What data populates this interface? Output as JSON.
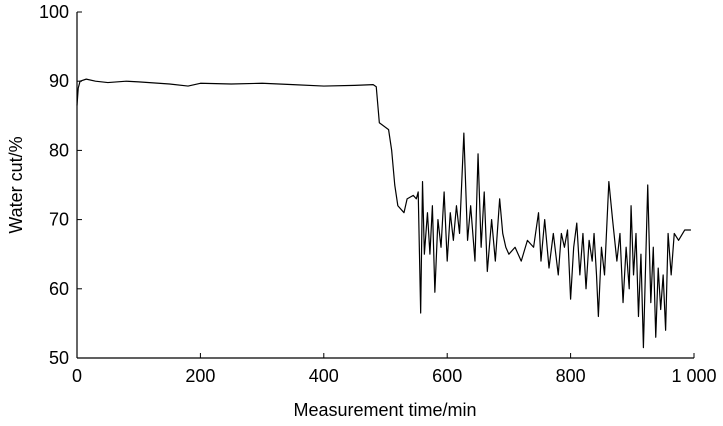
{
  "chart_data": {
    "type": "line",
    "xlabel": "Measurement time/min",
    "ylabel": "Water cut/%",
    "xlim": [
      0,
      1000
    ],
    "ylim": [
      50,
      100
    ],
    "xticks": [
      0,
      200,
      400,
      600,
      800,
      {
        "value": 1000,
        "label": "1 000"
      }
    ],
    "yticks": [
      50,
      60,
      70,
      80,
      90,
      100
    ],
    "series": [
      {
        "color": "#000000",
        "x": [
          0,
          2,
          5,
          15,
          30,
          50,
          80,
          100,
          150,
          180,
          200,
          250,
          300,
          350,
          400,
          450,
          480,
          485,
          490,
          505,
          510,
          515,
          520,
          530,
          535,
          545,
          550,
          553,
          557,
          560,
          563,
          568,
          572,
          576,
          580,
          585,
          590,
          595,
          600,
          605,
          610,
          615,
          620,
          627,
          633,
          638,
          645,
          650,
          655,
          660,
          665,
          672,
          678,
          685,
          690,
          695,
          700,
          710,
          720,
          730,
          740,
          748,
          752,
          758,
          765,
          772,
          780,
          785,
          790,
          795,
          800,
          805,
          810,
          815,
          820,
          825,
          830,
          835,
          838,
          842,
          845,
          850,
          855,
          862,
          868,
          875,
          880,
          885,
          890,
          895,
          898,
          902,
          906,
          910,
          914,
          918,
          925,
          930,
          934,
          938,
          942,
          946,
          950,
          954,
          958,
          963,
          968,
          975,
          985,
          995
        ],
        "values": [
          86.5,
          89,
          90,
          90.3,
          90,
          89.8,
          90,
          89.9,
          89.6,
          89.3,
          89.7,
          89.6,
          89.7,
          89.5,
          89.3,
          89.4,
          89.5,
          89.2,
          84,
          83,
          80,
          75,
          72,
          71,
          73,
          73.5,
          73,
          74,
          56.5,
          75.5,
          65,
          71,
          65,
          72,
          59.5,
          70,
          66,
          74,
          64,
          71,
          67,
          72,
          68,
          82.5,
          67,
          72,
          64,
          79.5,
          66,
          74,
          62.5,
          70,
          64,
          73,
          68,
          66,
          65,
          66,
          64,
          67,
          66,
          71,
          64,
          70,
          63,
          68,
          62,
          68,
          66,
          68.5,
          58.5,
          66,
          69.5,
          62,
          68,
          60,
          67,
          64,
          68,
          62,
          56,
          66,
          62,
          75.5,
          70,
          64,
          68,
          58,
          66,
          60,
          72,
          62,
          68,
          56,
          65,
          51.5,
          75,
          58,
          66,
          53,
          63,
          57,
          62,
          54,
          68,
          62,
          68,
          67,
          68.5,
          68.5
        ]
      }
    ]
  }
}
